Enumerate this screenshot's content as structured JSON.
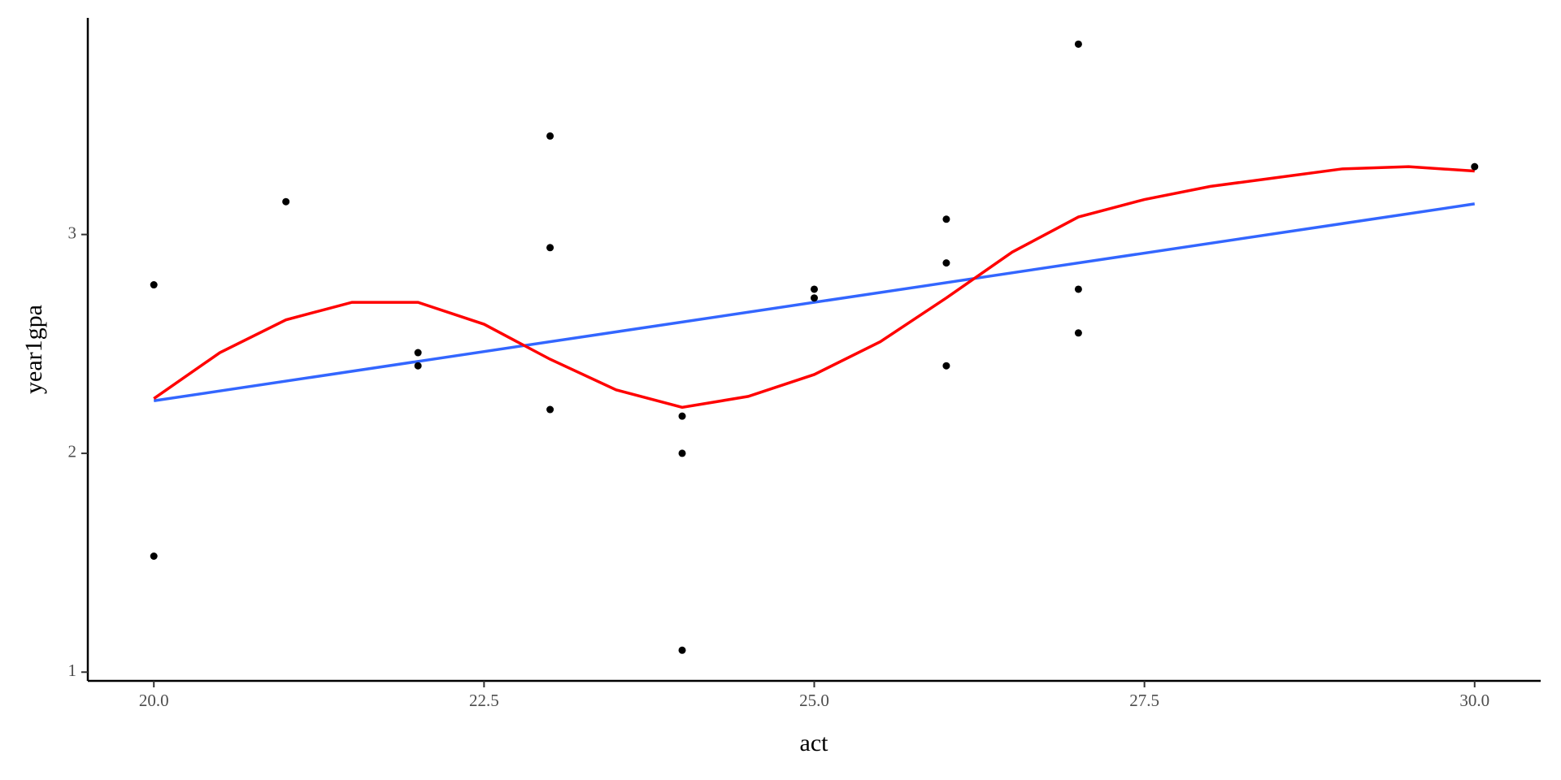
{
  "chart_data": {
    "type": "scatter",
    "x_label": "act",
    "y_label": "year1gpa",
    "xlim": [
      19.5,
      30.5
    ],
    "ylim": [
      0.96,
      3.99
    ],
    "xticks": [
      {
        "value": 20,
        "label": "20.0"
      },
      22.5,
      {
        "value": 25,
        "label": "25.0"
      },
      27.5,
      {
        "value": 30,
        "label": "30.0"
      }
    ],
    "yticks": [
      1,
      2,
      3
    ],
    "series": [
      {
        "type": "scatter",
        "color": "#000000",
        "x": [
          20,
          20,
          21,
          22,
          22,
          23,
          23,
          23,
          24,
          24,
          24,
          25,
          25,
          26,
          26,
          26,
          27,
          27,
          27,
          30
        ],
        "values": [
          2.77,
          1.53,
          3.15,
          2.46,
          2.4,
          3.45,
          2.94,
          2.2,
          2.17,
          2.0,
          1.1,
          2.75,
          2.71,
          3.07,
          2.87,
          2.4,
          3.87,
          2.75,
          2.55,
          3.31
        ]
      },
      {
        "type": "line",
        "color": "#3366ff",
        "x": [
          20,
          30
        ],
        "values": [
          2.24,
          3.14
        ]
      },
      {
        "type": "line",
        "color": "#ff0000",
        "x": [
          20,
          20.5,
          21,
          21.5,
          22,
          22.5,
          23,
          23.5,
          24,
          24.5,
          25,
          25.5,
          26,
          26.5,
          27,
          27.5,
          28,
          28.5,
          29,
          29.5,
          30
        ],
        "values": [
          2.25,
          2.46,
          2.61,
          2.69,
          2.69,
          2.59,
          2.43,
          2.29,
          2.21,
          2.26,
          2.36,
          2.51,
          2.71,
          2.92,
          3.08,
          3.16,
          3.22,
          3.26,
          3.3,
          3.31,
          3.29
        ]
      }
    ]
  }
}
